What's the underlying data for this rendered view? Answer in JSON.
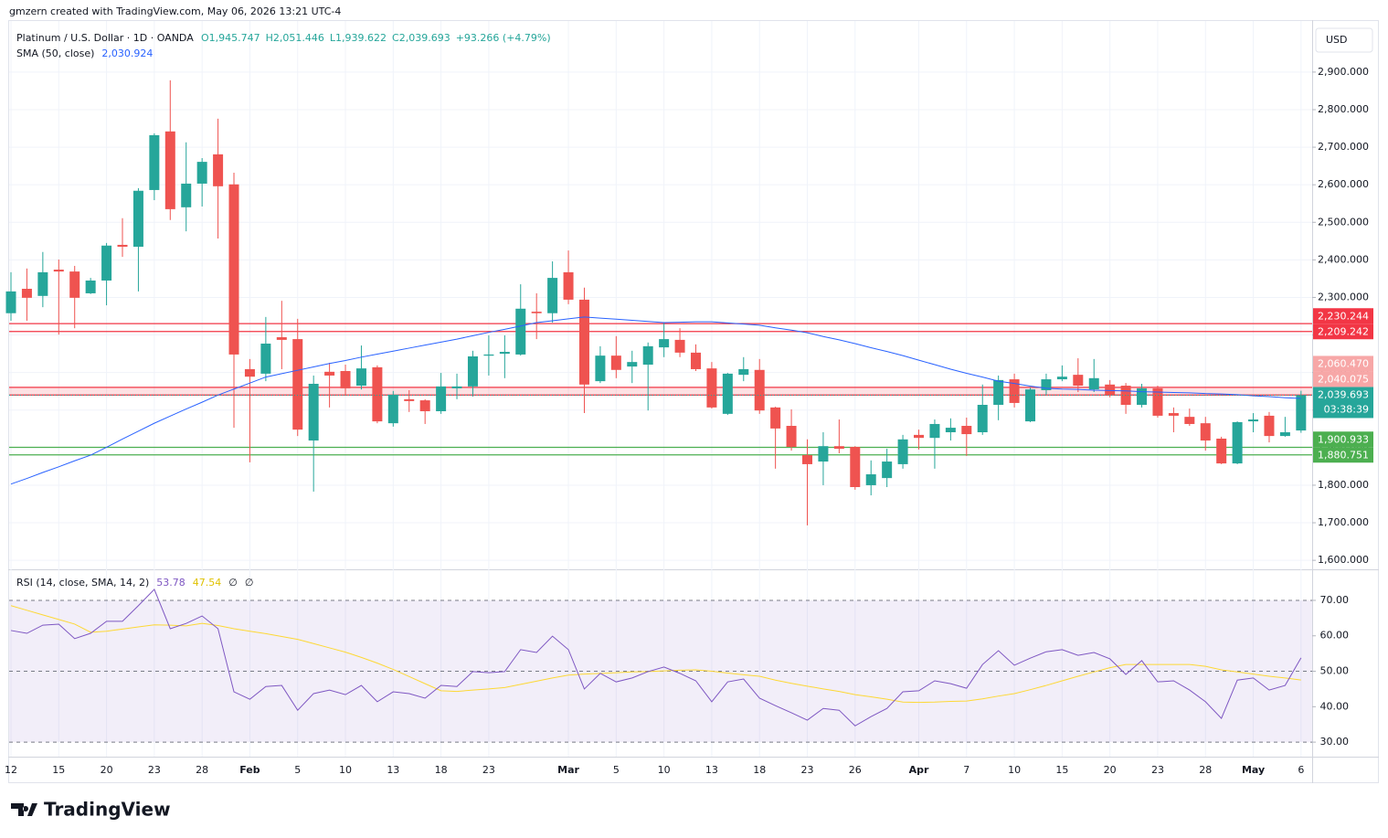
{
  "header": {
    "attribution": "gmzern created with TradingView.com, May 06, 2026 13:21 UTC-4"
  },
  "footer": {
    "logo": "TradingView"
  },
  "chart_data": [
    {
      "type": "candlestick",
      "title": "Platinum / U.S. Dollar · 1D · OANDA",
      "legend_values": [
        "O1,945.747",
        "H2,051.446",
        "L1,939.622",
        "C2,039.693",
        "+93.266 (+4.79%)"
      ],
      "currency": "USD",
      "up_color": "#26a69a",
      "down_color": "#ef5350",
      "categories": [
        "12",
        null,
        null,
        "15",
        null,
        null,
        "20",
        null,
        null,
        "23",
        null,
        null,
        "28",
        null,
        null,
        "Feb",
        null,
        null,
        "5",
        null,
        null,
        "10",
        null,
        null,
        "13",
        null,
        null,
        "18",
        null,
        null,
        "23",
        null,
        null,
        null,
        null,
        "Mar",
        null,
        null,
        "5",
        null,
        null,
        "10",
        null,
        null,
        "13",
        null,
        null,
        "18",
        null,
        null,
        "23",
        null,
        null,
        "26",
        null,
        null,
        null,
        "Apr",
        null,
        null,
        "7",
        null,
        null,
        "10",
        null,
        null,
        "15",
        null,
        null,
        "20",
        null,
        null,
        "23",
        null,
        null,
        "28",
        null,
        null,
        "May",
        null,
        null,
        "6"
      ],
      "open": [
        2258,
        2323,
        2304,
        2374,
        2369,
        2311,
        2345,
        2440,
        2435,
        2586,
        2742,
        2540,
        2603,
        2681,
        2601,
        2109,
        2097,
        2194,
        2189,
        1919,
        2102,
        2104,
        2065,
        2114,
        1965,
        2029,
        2026,
        1997,
        2058,
        2063,
        2145,
        2150,
        2148,
        2262,
        2258,
        2367,
        2294,
        2077,
        2145,
        2116,
        2121,
        2167,
        2187,
        2153,
        2111,
        1990,
        2094,
        2107,
        2007,
        1958,
        1880,
        1863,
        1904,
        1902,
        1800,
        1819,
        1856,
        1934,
        1926,
        1941,
        1958,
        1941,
        2014,
        2082,
        1970,
        2053,
        2082,
        2094,
        2055,
        2068,
        2065,
        2014,
        2058,
        1992,
        1982,
        1965,
        1924,
        1858,
        1970,
        1985,
        1931,
        1945.747
      ],
      "high": [
        2367,
        2377,
        2421,
        2401,
        2384,
        2352,
        2445,
        2511,
        2591,
        2737,
        2878,
        2713,
        2671,
        2776,
        2632,
        2136,
        2248,
        2291,
        2243,
        2092,
        2126,
        2121,
        2172,
        2119,
        2051,
        2053,
        2029,
        2099,
        2097,
        2158,
        2199,
        2199,
        2335,
        2311,
        2396,
        2425,
        2326,
        2170,
        2197,
        2158,
        2180,
        2233,
        2218,
        2175,
        2128,
        2099,
        2141,
        2136,
        2009,
        2002,
        1922,
        1941,
        1975,
        1904,
        1866,
        1897,
        1934,
        1948,
        1975,
        1978,
        1980,
        2068,
        2092,
        2097,
        2060,
        2097,
        2119,
        2138,
        2136,
        2080,
        2072,
        2070,
        2065,
        2007,
        2004,
        1982,
        1929,
        1970,
        1992,
        1995,
        1982,
        2051.446
      ],
      "low": [
        2238,
        2238,
        2274,
        2201,
        2218,
        2309,
        2279,
        2408,
        2316,
        2559,
        2506,
        2476,
        2542,
        2457,
        1953,
        1861,
        2077,
        2109,
        1931,
        1783,
        2007,
        2038,
        2055,
        1965,
        1956,
        1995,
        1963,
        1990,
        2029,
        2036,
        2092,
        2085,
        2145,
        2189,
        2233,
        2282,
        1992,
        2072,
        2085,
        2072,
        1999,
        2141,
        2141,
        2104,
        2004,
        1987,
        2077,
        1990,
        1844,
        1892,
        1693,
        1800,
        1885,
        1788,
        1773,
        1795,
        1844,
        1895,
        1844,
        1919,
        1878,
        1934,
        1973,
        2007,
        1968,
        2041,
        2077,
        2048,
        2048,
        2034,
        1990,
        2007,
        1980,
        1941,
        1958,
        1892,
        1856,
        1856,
        1941,
        1914,
        1929,
        1939.622
      ],
      "close": [
        2316,
        2299,
        2367,
        2369,
        2299,
        2345,
        2438,
        2435,
        2584,
        2732,
        2535,
        2603,
        2661,
        2596,
        2148,
        2089,
        2177,
        2187,
        1948,
        2070,
        2092,
        2058,
        2111,
        1970,
        2041,
        2024,
        1997,
        2063,
        2063,
        2143,
        2148,
        2155,
        2270,
        2258,
        2352,
        2294,
        2068,
        2145,
        2107,
        2128,
        2170,
        2189,
        2153,
        2109,
        2007,
        2097,
        2109,
        1999,
        1951,
        1902,
        1856,
        1904,
        1897,
        1795,
        1829,
        1863,
        1922,
        1926,
        1963,
        1953,
        1936,
        2014,
        2080,
        2019,
        2055,
        2082,
        2089,
        2065,
        2085,
        2041,
        2014,
        2058,
        1985,
        1985,
        1963,
        1919,
        1858,
        1968,
        1975,
        1931,
        1941,
        2039.693
      ],
      "series": [
        {
          "name": "SMA (50, close)",
          "value_label": "2,030.924",
          "color": "#2962ff",
          "values": [
            1803,
            1818,
            1834,
            1849,
            1865,
            1880,
            1901,
            1923,
            1944,
            1965,
            1984,
            2003,
            2021,
            2040,
            2056,
            2072,
            2088,
            2097,
            2106,
            2115,
            2124,
            2132,
            2141,
            2149,
            2157,
            2165,
            2173,
            2181,
            2189,
            2198,
            2207,
            2215,
            2224,
            2233,
            2238,
            2243,
            2248,
            2245,
            2242,
            2239,
            2236,
            2233,
            2234,
            2235,
            2235,
            2232,
            2229,
            2226,
            2219,
            2213,
            2206,
            2196,
            2187,
            2177,
            2166,
            2156,
            2145,
            2133,
            2121,
            2109,
            2098,
            2088,
            2077,
            2071,
            2064,
            2058,
            2056,
            2055,
            2053,
            2052,
            2051,
            2049,
            2048,
            2047,
            2046,
            2044,
            2043,
            2041,
            2038,
            2036,
            2033,
            2030.924
          ]
        }
      ],
      "zones": [
        {
          "color": "#f23645",
          "fill": false,
          "values": [
            2230.244,
            2209.242
          ],
          "labels": [
            "2,230.244",
            "2,209.242"
          ]
        },
        {
          "color": "#f23645",
          "fill": true,
          "values": [
            2060.47,
            2040.075
          ],
          "labels": [
            "2,060.470",
            "2,040.075"
          ]
        },
        {
          "color": "#4caf50",
          "fill": false,
          "values": [
            1900.933,
            1880.751
          ],
          "labels": [
            "1,900.933",
            "1,880.751"
          ]
        }
      ],
      "last_price": {
        "value": 2039.693,
        "label": "2,039.693",
        "countdown": "03:38:39"
      },
      "ylim": [
        1576,
        3036
      ],
      "yticks": [
        {
          "value": 1600,
          "label": "1,600.000"
        },
        {
          "value": 1700,
          "label": "1,700.000"
        },
        {
          "value": 1800,
          "label": "1,800.000"
        },
        {
          "value": 1900,
          "label": "1,900.000"
        },
        {
          "value": 2000,
          "label": "2,000.000"
        },
        {
          "value": 2100,
          "label": "2,100.000"
        },
        {
          "value": 2200,
          "label": "2,200.000"
        },
        {
          "value": 2300,
          "label": "2,300.000"
        },
        {
          "value": 2400,
          "label": "2,400.000"
        },
        {
          "value": 2500,
          "label": "2,500.000"
        },
        {
          "value": 2600,
          "label": "2,600.000"
        },
        {
          "value": 2700,
          "label": "2,700.000"
        },
        {
          "value": 2800,
          "label": "2,800.000"
        },
        {
          "value": 2900,
          "label": "2,900.000"
        }
      ],
      "grid": true
    },
    {
      "type": "line",
      "title": "RSI (14, close, SMA, 14, 2)",
      "extra_labels": [
        "∅",
        "∅"
      ],
      "series": [
        {
          "value_label": "53.78",
          "color": "#7e57c2",
          "values": [
            61.5,
            60.7,
            63.0,
            63.3,
            59.2,
            60.7,
            64.1,
            64.1,
            68.5,
            73.1,
            62.0,
            63.5,
            65.6,
            62.0,
            44.2,
            42.1,
            45.7,
            46.0,
            39.0,
            43.7,
            44.7,
            43.4,
            46.0,
            41.4,
            44.2,
            43.7,
            42.4,
            46.0,
            45.7,
            49.9,
            49.6,
            49.9,
            56.1,
            55.3,
            59.9,
            56.1,
            45.0,
            49.4,
            47.0,
            48.1,
            49.9,
            51.2,
            49.4,
            47.3,
            41.4,
            47.0,
            47.8,
            42.4,
            40.3,
            38.3,
            36.2,
            39.5,
            39.0,
            34.6,
            37.2,
            39.5,
            44.2,
            44.5,
            47.3,
            46.5,
            45.2,
            51.9,
            55.8,
            51.7,
            53.7,
            55.5,
            56.1,
            54.5,
            55.3,
            53.5,
            49.1,
            53.0,
            47.0,
            47.3,
            44.7,
            41.4,
            36.7,
            47.5,
            48.1,
            44.7,
            46.0,
            53.78
          ]
        },
        {
          "value_label": "47.54",
          "color": "#fdd835",
          "values": [
            68.5,
            67.2,
            65.9,
            64.6,
            63.3,
            61.0,
            61.3,
            61.9,
            62.5,
            63.1,
            63.0,
            62.8,
            63.5,
            62.9,
            62.0,
            61.3,
            60.6,
            59.8,
            59.0,
            57.8,
            56.6,
            55.4,
            53.9,
            52.3,
            50.5,
            48.5,
            46.5,
            44.5,
            44.3,
            44.7,
            45.0,
            45.4,
            46.3,
            47.2,
            48.1,
            48.9,
            49.2,
            49.4,
            49.6,
            49.8,
            49.9,
            50.1,
            50.3,
            50.4,
            50.0,
            49.5,
            49.0,
            48.6,
            47.5,
            46.6,
            45.8,
            45.0,
            44.3,
            43.4,
            42.8,
            42.1,
            41.3,
            41.2,
            41.3,
            41.5,
            41.6,
            42.2,
            43.0,
            43.7,
            44.8,
            46.0,
            47.3,
            48.6,
            49.8,
            51.0,
            51.9,
            51.9,
            51.9,
            51.9,
            51.9,
            51.4,
            50.4,
            49.8,
            49.2,
            48.6,
            48.1,
            47.54
          ]
        }
      ],
      "band": [
        30,
        70
      ],
      "band_color": "#7e57c2",
      "ylim": [
        25.9,
        78.5
      ],
      "yticks": [
        {
          "value": 30,
          "label": "30.00"
        },
        {
          "value": 40,
          "label": "40.00"
        },
        {
          "value": 50,
          "label": "50.00"
        },
        {
          "value": 60,
          "label": "60.00"
        },
        {
          "value": 70,
          "label": "70.00"
        }
      ],
      "dashed": [
        30,
        50,
        70
      ]
    }
  ]
}
